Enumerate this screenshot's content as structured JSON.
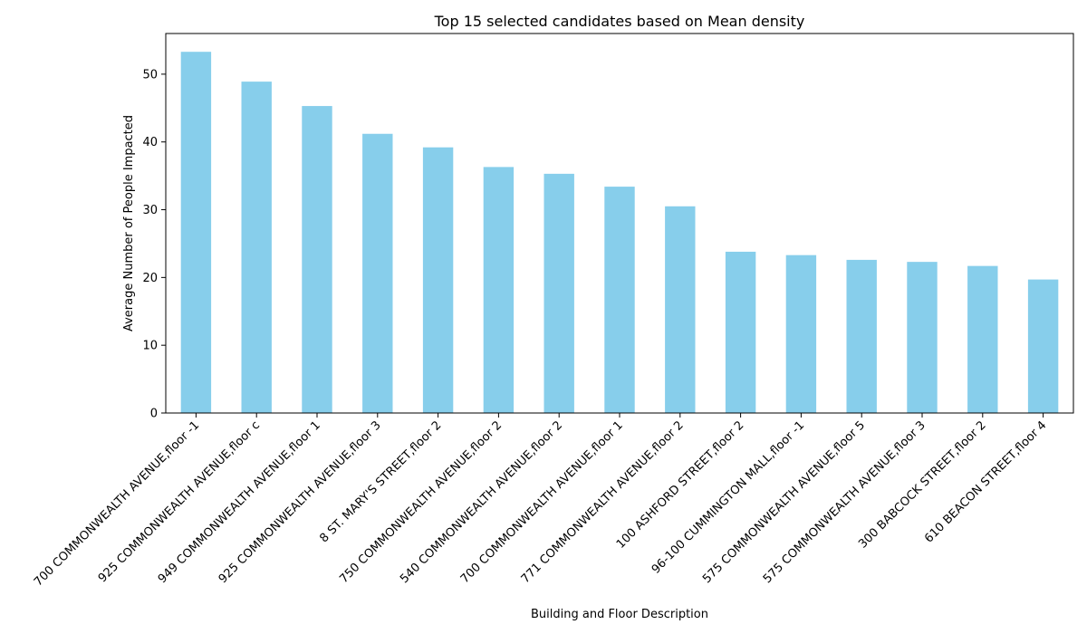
{
  "chart_data": {
    "type": "bar",
    "title": "Top 15 selected candidates based on Mean density",
    "xlabel": "Building and Floor Description",
    "ylabel": "Average Number of People Impacted",
    "ylim": [
      0,
      56
    ],
    "yticks": [
      0,
      10,
      20,
      30,
      40,
      50
    ],
    "grid": false,
    "bar_color": "#87CEEB",
    "categories": [
      "700 COMMONWEALTH AVENUE,floor -1",
      "925 COMMONWEALTH AVENUE,floor c",
      "949 COMMONWEALTH AVENUE,floor 1",
      "925 COMMONWEALTH AVENUE,floor 3",
      "8 ST. MARY'S STREET,floor 2",
      "750 COMMONWEALTH AVENUE,floor 2",
      "540 COMMONWEALTH AVENUE,floor 2",
      "700 COMMONWEALTH AVENUE,floor 1",
      "771 COMMONWEALTH AVENUE,floor 2",
      "100 ASHFORD STREET,floor 2",
      "96-100 CUMMINGTON MALL,floor -1",
      "575 COMMONWEALTH AVENUE,floor 5",
      "575 COMMONWEALTH AVENUE,floor 3",
      "300 BABCOCK STREET,floor 2",
      "610 BEACON STREET,floor 4"
    ],
    "values": [
      53.3,
      48.9,
      45.3,
      41.2,
      39.2,
      36.3,
      35.3,
      33.4,
      30.5,
      23.8,
      23.3,
      22.6,
      22.3,
      21.7,
      19.7
    ]
  }
}
